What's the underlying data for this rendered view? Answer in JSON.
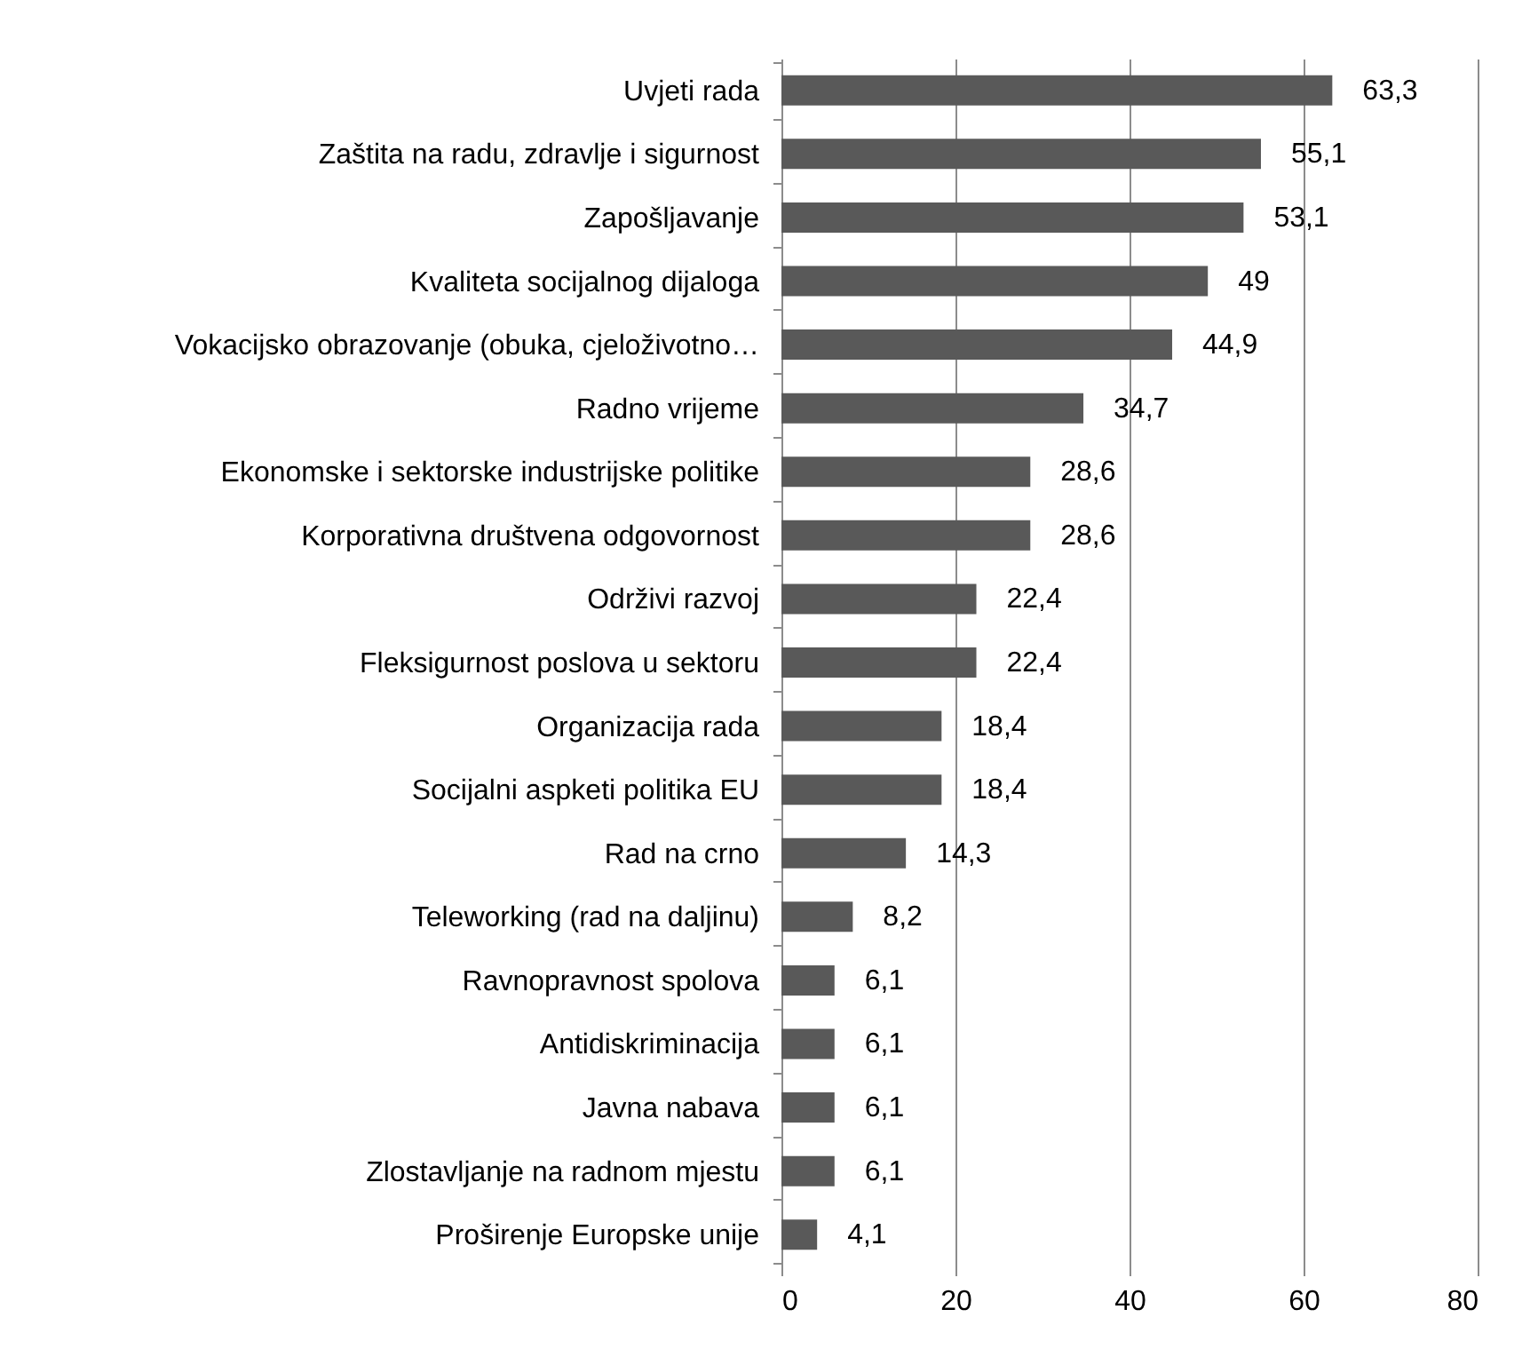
{
  "chart_data": {
    "type": "bar",
    "orientation": "horizontal",
    "categories": [
      "Uvjeti rada",
      "Zaštita na radu, zdravlje i sigurnost",
      "Zapošljavanje",
      "Kvaliteta socijalnog dijaloga",
      "Vokacijsko obrazovanje (obuka, cjeloživotno…",
      "Radno vrijeme",
      "Ekonomske i sektorske industrijske politike",
      "Korporativna društvena odgovornost",
      "Održivi razvoj",
      "Fleksigurnost poslova u sektoru",
      "Organizacija rada",
      "Socijalni aspketi politika EU",
      "Rad na crno",
      "Teleworking (rad na daljinu)",
      "Ravnopravnost spolova",
      "Antidiskriminacija",
      "Javna nabava",
      "Zlostavljanje na radnom mjestu",
      "Proširenje Europske unije"
    ],
    "values": [
      63.3,
      55.1,
      53.1,
      49,
      44.9,
      34.7,
      28.6,
      28.6,
      22.4,
      22.4,
      18.4,
      18.4,
      14.3,
      8.2,
      6.1,
      6.1,
      6.1,
      6.1,
      4.1
    ],
    "value_labels": [
      "63,3",
      "55,1",
      "53,1",
      "49",
      "44,9",
      "34,7",
      "28,6",
      "28,6",
      "22,4",
      "22,4",
      "18,4",
      "18,4",
      "14,3",
      "8,2",
      "6,1",
      "6,1",
      "6,1",
      "6,1",
      "4,1"
    ],
    "color": "#595959",
    "xlim": [
      0,
      80
    ],
    "xticks": [
      0,
      20,
      40,
      60,
      80
    ],
    "grid": "x"
  }
}
